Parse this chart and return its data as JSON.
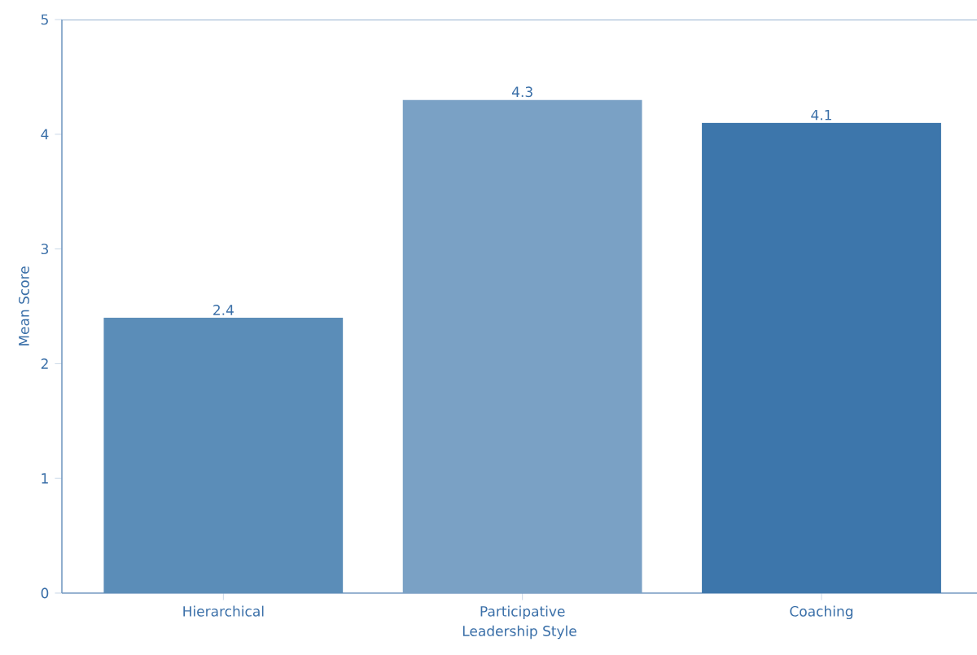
{
  "chart_data": {
    "type": "bar",
    "xlabel": "Leadership Style",
    "ylabel": "Mean Score",
    "categories": [
      "Hierarchical",
      "Participative",
      "Coaching"
    ],
    "values": [
      2.4,
      4.3,
      4.1
    ],
    "colors": [
      "#5b8db8",
      "#7aa1c5",
      "#3d76ab"
    ],
    "ylim": [
      0,
      5
    ],
    "yticks": [
      0,
      1,
      2,
      3,
      4,
      5
    ],
    "data_labels": true,
    "grid": false
  }
}
